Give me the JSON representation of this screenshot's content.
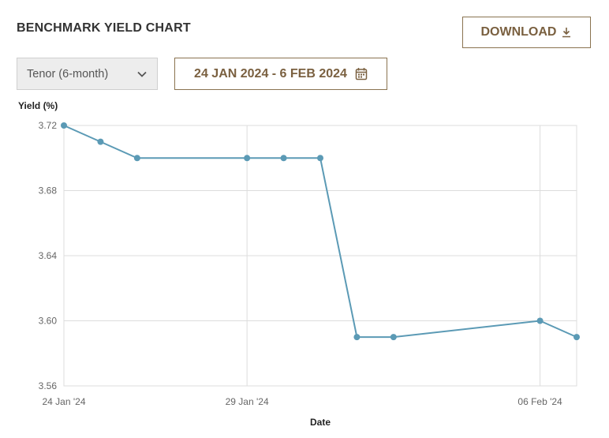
{
  "header": {
    "title": "BENCHMARK YIELD CHART",
    "download_label": "DOWNLOAD",
    "download_icon": "download-icon"
  },
  "controls": {
    "tenor_selected": "Tenor (6-month)",
    "tenor_icon": "chevron-down-icon",
    "date_range_label": "24 JAN 2024 - 6 FEB 2024",
    "date_icon": "calendar-icon"
  },
  "colors": {
    "accent": "#7a6040",
    "line": "#5b9ab5",
    "grid": "#dddddd"
  },
  "chart_data": {
    "type": "line",
    "xlabel": "Date",
    "ylabel": "Yield (%)",
    "ylim": [
      3.56,
      3.72
    ],
    "yticks": [
      "3.56",
      "3.60",
      "3.64",
      "3.68",
      "3.72"
    ],
    "xticks": [
      {
        "label": "24 Jan '24",
        "x": "2024-01-24"
      },
      {
        "label": "29 Jan '24",
        "x": "2024-01-29"
      },
      {
        "label": "06 Feb '24",
        "x": "2024-02-06"
      }
    ],
    "xlim": [
      "2024-01-24",
      "2024-02-07"
    ],
    "grid": true,
    "series": [
      {
        "x": [
          "2024-01-24",
          "2024-01-25",
          "2024-01-26",
          "2024-01-29",
          "2024-01-30",
          "2024-01-31",
          "2024-02-01",
          "2024-02-02",
          "2024-02-06",
          "2024-02-07"
        ],
        "values": [
          3.72,
          3.71,
          3.7,
          3.7,
          3.7,
          3.7,
          3.59,
          3.59,
          3.6,
          3.59
        ]
      }
    ]
  }
}
